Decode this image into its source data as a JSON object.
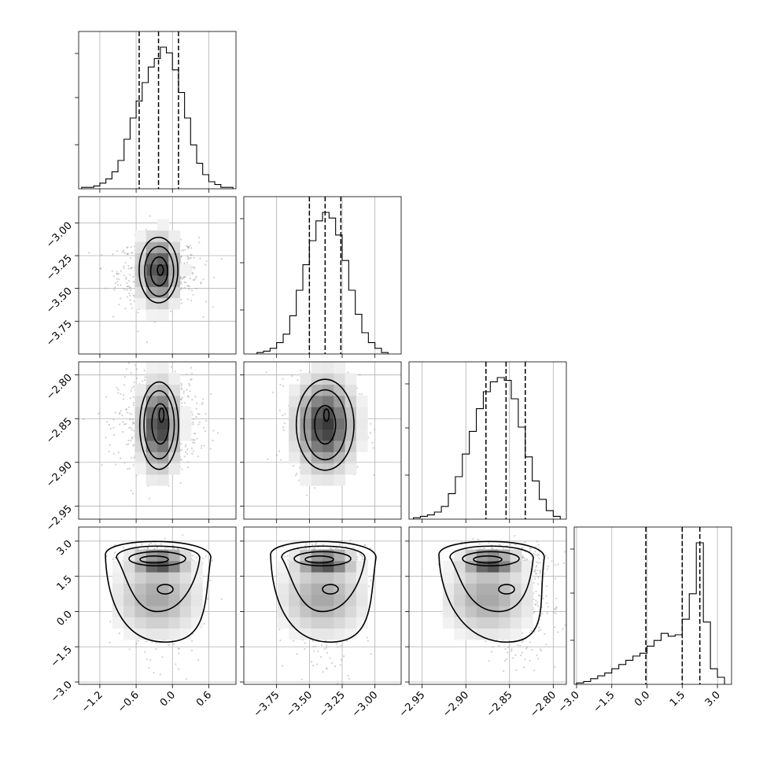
{
  "chart_data": {
    "type": "corner",
    "title": "",
    "parameters": [
      {
        "range": [
          -1.55,
          1.05
        ],
        "ticks": [
          -1.2,
          -0.6,
          0.0,
          0.6
        ],
        "tick_labels": [
          "−1.2",
          "−0.6",
          "0.0",
          "0.6"
        ],
        "mean": -0.23,
        "sd": 0.3,
        "quantiles": [
          -0.55,
          -0.23,
          0.1
        ],
        "histogram": {
          "edges": [
            -1.5,
            -1.4,
            -1.3,
            -1.2,
            -1.1,
            -1.0,
            -0.9,
            -0.8,
            -0.7,
            -0.6,
            -0.5,
            -0.4,
            -0.3,
            -0.2,
            -0.1,
            0.0,
            0.1,
            0.2,
            0.3,
            0.4,
            0.5,
            0.6,
            0.7,
            0.8,
            0.9,
            1.0
          ],
          "counts": [
            0.01,
            0.01,
            0.02,
            0.04,
            0.07,
            0.12,
            0.2,
            0.35,
            0.5,
            0.62,
            0.75,
            0.86,
            0.92,
            1.0,
            0.96,
            0.84,
            0.68,
            0.5,
            0.31,
            0.18,
            0.1,
            0.05,
            0.03,
            0.01,
            0.01
          ]
        }
      },
      {
        "range": [
          -4.0,
          -2.8
        ],
        "ticks": [
          -3.75,
          -3.5,
          -3.25,
          -3.0
        ],
        "tick_labels": [
          "−3.75",
          "−3.50",
          "−3.25",
          "−3.00"
        ],
        "mean": -3.38,
        "sd": 0.12,
        "quantiles": [
          -3.5,
          -3.38,
          -3.26
        ],
        "histogram": {
          "edges": [
            -3.9,
            -3.85,
            -3.8,
            -3.75,
            -3.7,
            -3.65,
            -3.6,
            -3.55,
            -3.5,
            -3.45,
            -3.4,
            -3.35,
            -3.3,
            -3.25,
            -3.2,
            -3.15,
            -3.1,
            -3.05,
            -3.0,
            -2.95,
            -2.9
          ],
          "counts": [
            0.01,
            0.02,
            0.04,
            0.08,
            0.14,
            0.27,
            0.45,
            0.63,
            0.8,
            0.94,
            1.0,
            0.96,
            0.84,
            0.66,
            0.45,
            0.28,
            0.15,
            0.08,
            0.04,
            0.01
          ]
        }
      },
      {
        "range": [
          -2.965,
          -2.785
        ],
        "ticks": [
          -2.95,
          -2.9,
          -2.85,
          -2.8
        ],
        "tick_labels": [
          "−2.95",
          "−2.90",
          "−2.85",
          "−2.80"
        ],
        "mean": -2.855,
        "sd": 0.025,
        "quantiles": [
          -2.877,
          -2.854,
          -2.832
        ],
        "histogram": {
          "edges": [
            -2.96,
            -2.952,
            -2.944,
            -2.936,
            -2.928,
            -2.92,
            -2.912,
            -2.904,
            -2.896,
            -2.888,
            -2.88,
            -2.872,
            -2.864,
            -2.856,
            -2.848,
            -2.84,
            -2.832,
            -2.824,
            -2.816,
            -2.808,
            -2.8,
            -2.792
          ],
          "counts": [
            0.01,
            0.02,
            0.03,
            0.05,
            0.09,
            0.18,
            0.3,
            0.46,
            0.62,
            0.78,
            0.9,
            0.97,
            1.0,
            0.98,
            0.85,
            0.65,
            0.44,
            0.27,
            0.14,
            0.06,
            0.02
          ]
        }
      },
      {
        "range": [
          -3.1,
          3.6
        ],
        "ticks": [
          -3.0,
          -1.5,
          0.0,
          1.5,
          3.0
        ],
        "tick_labels": [
          "−3.0",
          "−1.5",
          "0.0",
          "1.5",
          "3.0"
        ],
        "quantiles": [
          -0.05,
          1.5,
          2.25
        ],
        "histogram": {
          "edges": [
            -3.0,
            -2.7,
            -2.4,
            -2.1,
            -1.8,
            -1.5,
            -1.2,
            -0.9,
            -0.6,
            -0.3,
            0.0,
            0.3,
            0.6,
            0.9,
            1.2,
            1.5,
            1.8,
            2.1,
            2.4,
            2.7,
            3.0,
            3.3
          ],
          "counts": [
            0.01,
            0.02,
            0.04,
            0.06,
            0.08,
            0.11,
            0.14,
            0.17,
            0.2,
            0.22,
            0.27,
            0.31,
            0.36,
            0.34,
            0.35,
            0.46,
            0.64,
            1.0,
            0.44,
            0.11,
            0.05
          ]
        }
      }
    ],
    "contours": {
      "1_0": [
        {
          "cx": -0.23,
          "cy": -3.36,
          "rx": 0.32,
          "ry": 0.25
        },
        {
          "cx": -0.22,
          "cy": -3.37,
          "rx": 0.24,
          "ry": 0.19
        },
        {
          "cx": -0.22,
          "cy": -3.37,
          "rx": 0.14,
          "ry": 0.11
        },
        {
          "cx": -0.2,
          "cy": -3.36,
          "rx": 0.05,
          "ry": 0.04
        }
      ],
      "2_0": [
        {
          "cx": -0.22,
          "cy": -2.858,
          "rx": 0.32,
          "ry": 0.05
        },
        {
          "cx": -0.22,
          "cy": -2.857,
          "rx": 0.25,
          "ry": 0.039
        },
        {
          "cx": -0.2,
          "cy": -2.856,
          "rx": 0.14,
          "ry": 0.023
        },
        {
          "cx": -0.18,
          "cy": -2.846,
          "rx": 0.04,
          "ry": 0.008
        }
      ],
      "2_1": [
        {
          "cx": -3.38,
          "cy": -2.857,
          "rx": 0.22,
          "ry": 0.052
        },
        {
          "cx": -3.38,
          "cy": -2.857,
          "rx": 0.16,
          "ry": 0.04
        },
        {
          "cx": -3.38,
          "cy": -2.857,
          "rx": 0.08,
          "ry": 0.022
        },
        {
          "cx": -3.37,
          "cy": -2.846,
          "rx": 0.02,
          "ry": 0.007
        }
      ]
    }
  }
}
